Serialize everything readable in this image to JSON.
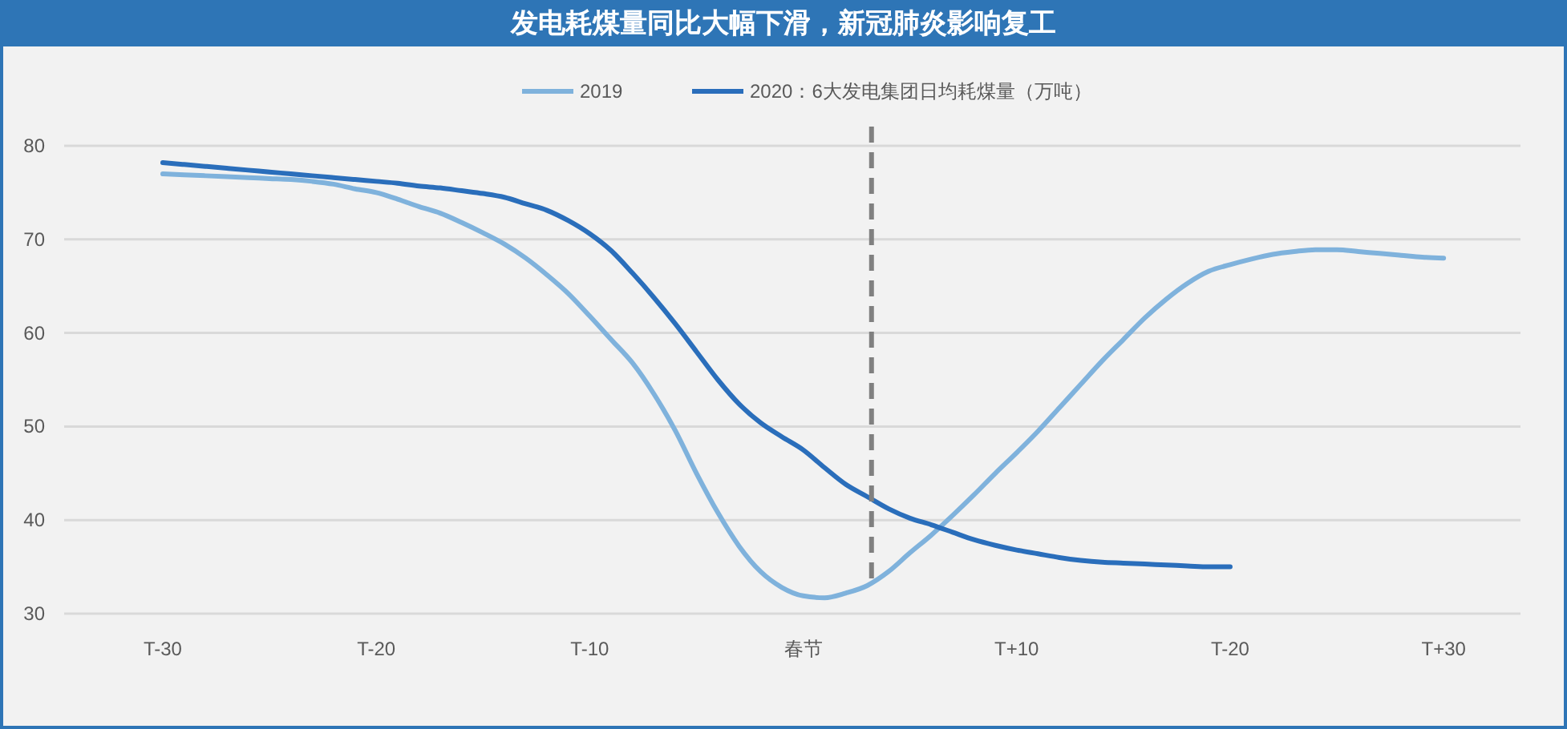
{
  "chart_data": {
    "type": "line",
    "title": "发电耗煤量同比大幅下滑，新冠肺炎影响复工",
    "categories": [
      "T-30",
      null,
      null,
      null,
      null,
      null,
      null,
      null,
      null,
      null,
      "T-20",
      null,
      null,
      null,
      null,
      null,
      null,
      null,
      null,
      null,
      "T-10",
      null,
      null,
      null,
      null,
      null,
      null,
      null,
      null,
      null,
      "春节",
      null,
      null,
      null,
      null,
      null,
      null,
      null,
      null,
      null,
      "T+10",
      null,
      null,
      null,
      null,
      null,
      null,
      null,
      null,
      null,
      "T-20",
      null,
      null,
      null,
      null,
      null,
      null,
      null,
      null,
      null,
      "T+30"
    ],
    "ylim": [
      30,
      80
    ],
    "yticks": [
      30,
      40,
      50,
      60,
      70,
      80
    ],
    "grid": "y",
    "legend": "top",
    "series": [
      {
        "name": "2019",
        "color": "#7fb2dc",
        "values": [
          77,
          76.9,
          76.8,
          76.7,
          76.6,
          76.5,
          76.4,
          76.2,
          75.9,
          75.4,
          75,
          74.3,
          73.5,
          72.8,
          71.8,
          70.7,
          69.5,
          68,
          66.2,
          64.2,
          61.8,
          59.3,
          56.8,
          53.5,
          49.6,
          45,
          40.8,
          37.2,
          34.5,
          32.8,
          31.9,
          31.7,
          32.2,
          33,
          34.5,
          36.5,
          38.4,
          40.5,
          42.7,
          45,
          47.2,
          49.5,
          52,
          54.5,
          57,
          59.3,
          61.6,
          63.6,
          65.3,
          66.6,
          67.3,
          67.9,
          68.4,
          68.7,
          68.9,
          68.9,
          68.7,
          68.5,
          68.3,
          68.1,
          68
        ]
      },
      {
        "name": "2020：6大发电集团日均耗煤量（万吨）",
        "color": "#2a6ebb",
        "values": [
          78.2,
          78,
          77.8,
          77.6,
          77.4,
          77.2,
          77,
          76.8,
          76.6,
          76.4,
          76.2,
          76,
          75.7,
          75.5,
          75.2,
          74.9,
          74.5,
          73.8,
          73.1,
          72,
          70.6,
          68.8,
          66.4,
          63.8,
          61,
          58,
          55,
          52.4,
          50.4,
          48.9,
          47.5,
          45.6,
          43.8,
          42.5,
          41.2,
          40.2,
          39.5,
          38.7,
          37.9,
          37.3,
          36.8,
          36.4,
          36,
          35.7,
          35.5,
          35.4,
          35.3,
          35.2,
          35.1,
          35,
          35,
          null,
          null,
          null,
          null,
          null,
          null,
          null,
          null,
          null,
          null
        ]
      }
    ]
  }
}
